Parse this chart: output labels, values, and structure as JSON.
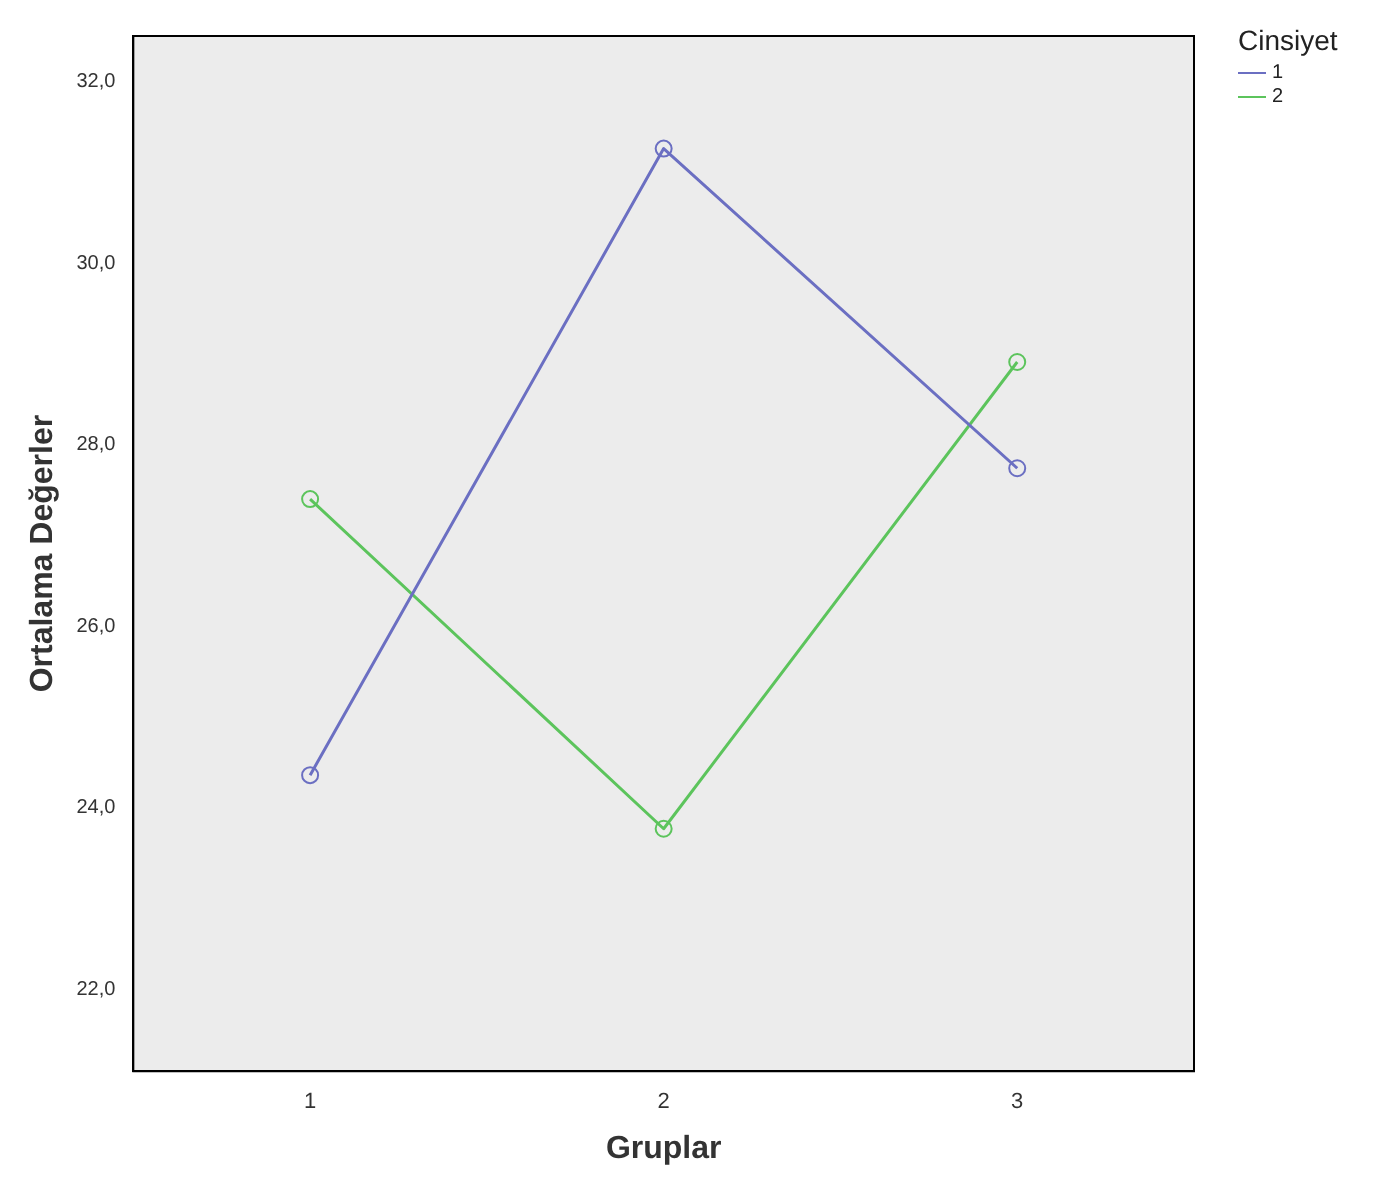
{
  "chart_data": {
    "type": "line",
    "xlabel": "Gruplar",
    "ylabel": "Ortalama Değerler",
    "legend_title": "Cinsiyet",
    "legend": "top right",
    "marker": "circle",
    "line_style": "solid",
    "grid": false,
    "categories": [
      "1",
      "2",
      "3"
    ],
    "ylim": [
      21.1,
      32.5
    ],
    "yticks": [
      {
        "value": 22,
        "label": "22,0"
      },
      {
        "value": 24,
        "label": "24,0"
      },
      {
        "value": 26,
        "label": "26,0"
      },
      {
        "value": 28,
        "label": "28,0"
      },
      {
        "value": 30,
        "label": "30,0"
      },
      {
        "value": 32,
        "label": "32,0"
      }
    ],
    "series": [
      {
        "name": "1",
        "color": "#6b6fc2",
        "values": [
          24.36,
          31.26,
          27.74
        ]
      },
      {
        "name": "2",
        "color": "#5cc45c",
        "values": [
          27.4,
          23.77,
          28.91
        ]
      }
    ]
  }
}
